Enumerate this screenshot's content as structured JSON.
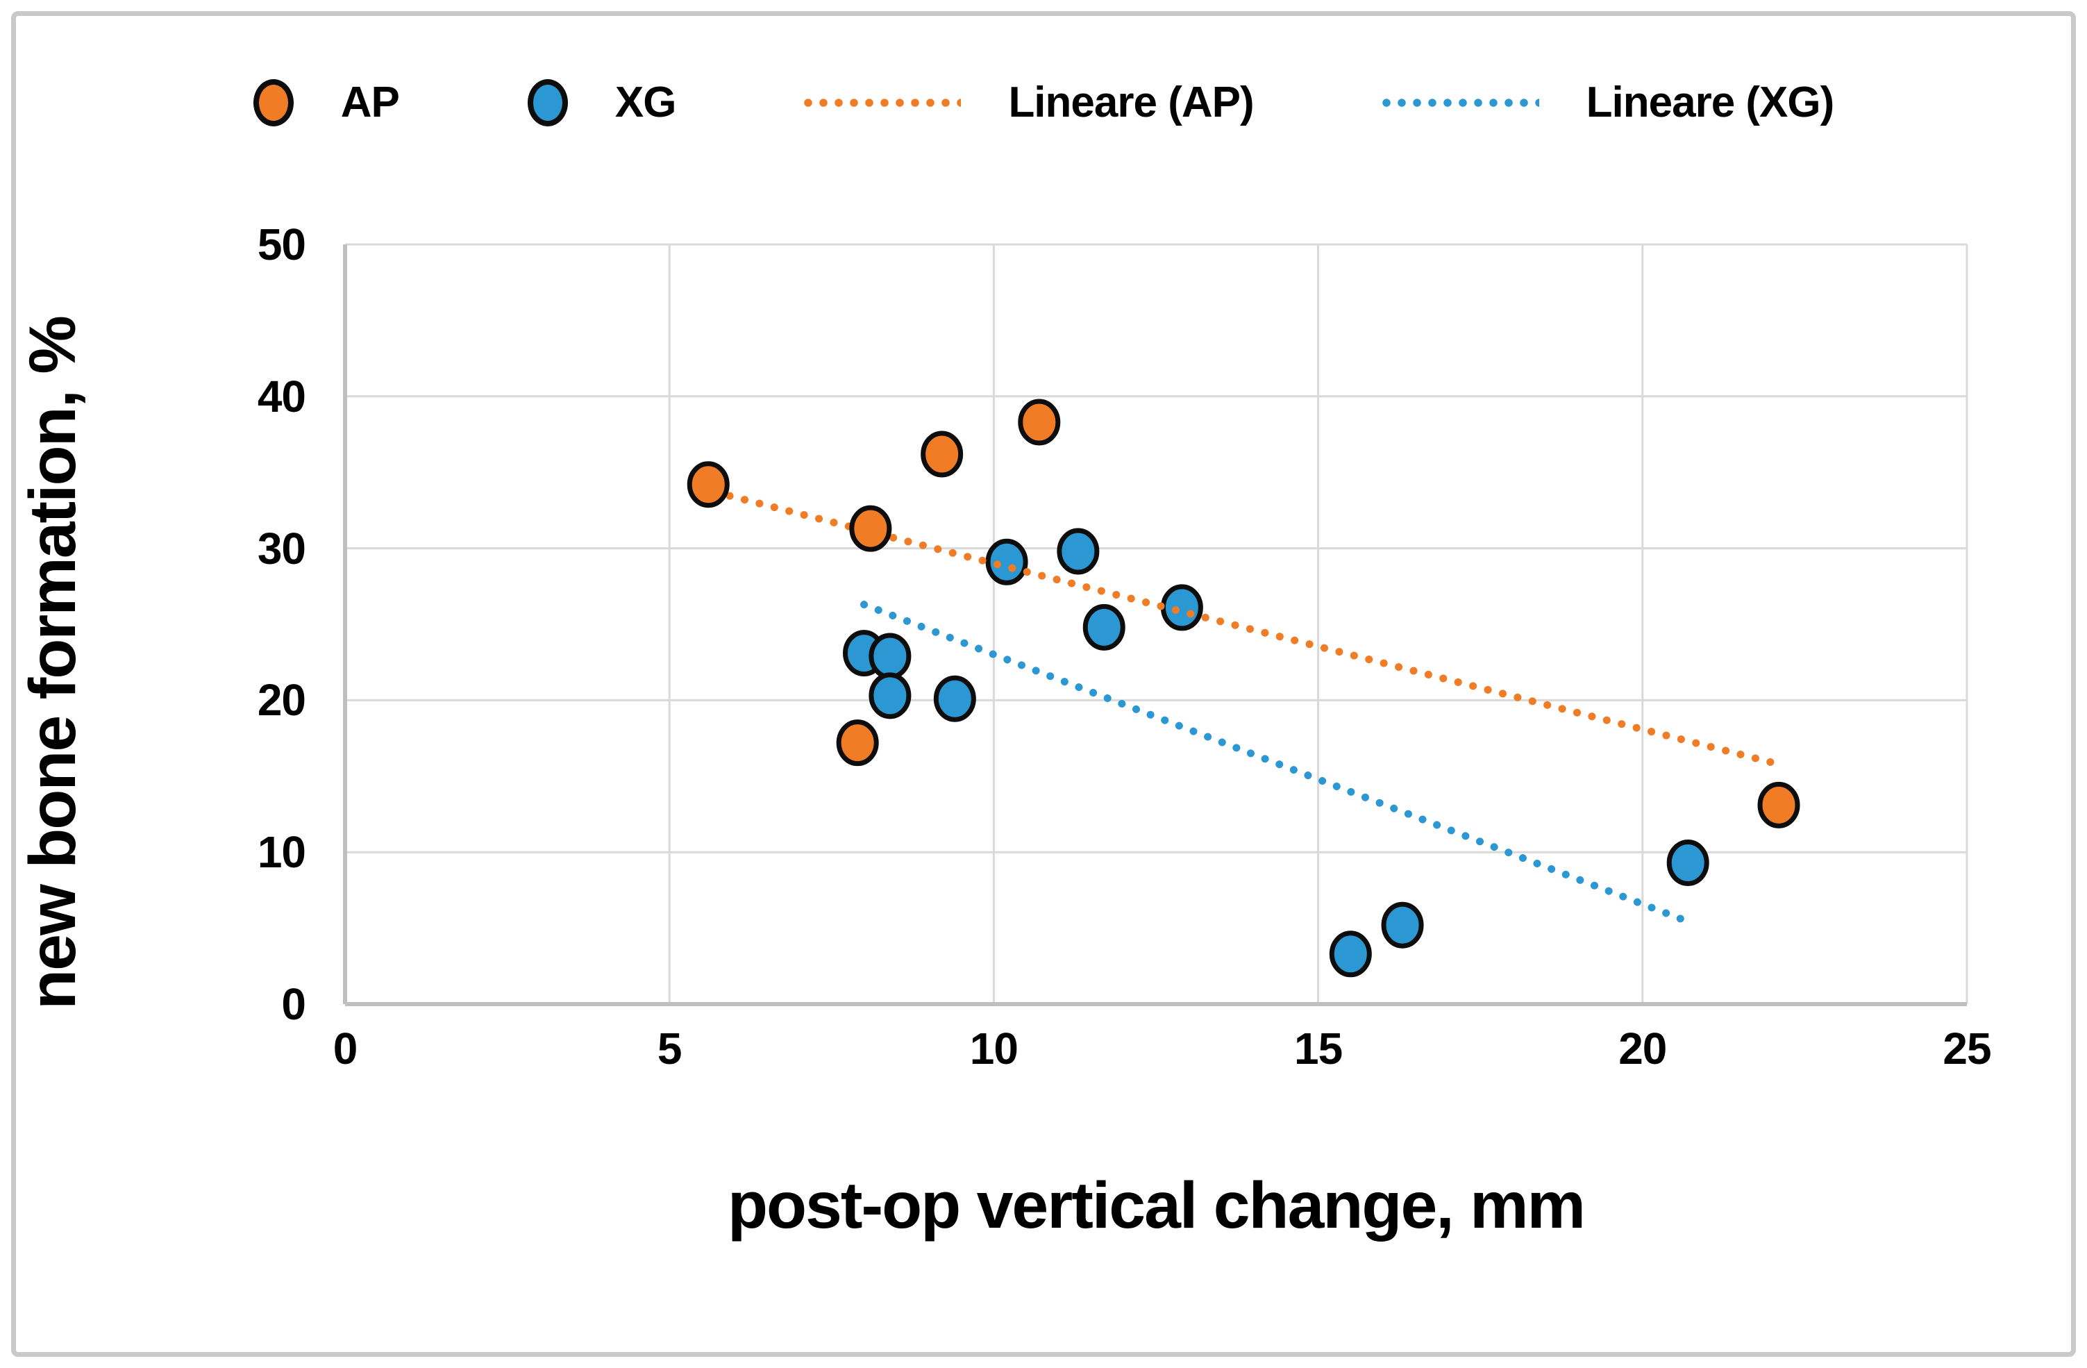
{
  "figure": {
    "background": "#ffffff",
    "border_color": "#c9c9c9"
  },
  "style": {
    "grid_color": "#d9d9d9",
    "axis_line_color": "#bfbfbf",
    "marker_outline_color": "#0d0d0d",
    "text_color": "#000000",
    "ap_color": "#f07d26",
    "xg_color": "#2b97d3"
  },
  "legend": [
    {
      "id": "ap",
      "label": "AP",
      "marker": "circle",
      "color": "#f07d26"
    },
    {
      "id": "xg",
      "label": "XG",
      "marker": "circle",
      "color": "#2b97d3"
    },
    {
      "id": "lin-ap",
      "label": "Lineare (AP)",
      "marker": "dotted-line",
      "color": "#f07d26"
    },
    {
      "id": "lin-xg",
      "label": "Lineare (XG)",
      "marker": "dotted-line",
      "color": "#2b97d3"
    }
  ],
  "chart_data": {
    "type": "scatter",
    "title": "",
    "xlabel": "post-op vertical change, mm",
    "ylabel": "new bone formation, %",
    "xlim": [
      0,
      25
    ],
    "ylim": [
      0,
      50
    ],
    "x_ticks": [
      0,
      5,
      10,
      15,
      20,
      25
    ],
    "y_ticks": [
      0,
      10,
      20,
      30,
      40,
      50
    ],
    "grid": true,
    "legend_position": "top",
    "series": [
      {
        "name": "AP",
        "color": "#f07d26",
        "points": [
          [
            5.6,
            34.2
          ],
          [
            7.9,
            17.2
          ],
          [
            8.1,
            31.3
          ],
          [
            9.2,
            36.2
          ],
          [
            10.7,
            38.3
          ],
          [
            22.1,
            13.1
          ]
        ]
      },
      {
        "name": "XG",
        "color": "#2b97d3",
        "points": [
          [
            8.0,
            23.1
          ],
          [
            8.4,
            22.9
          ],
          [
            8.4,
            20.3
          ],
          [
            9.4,
            20.1
          ],
          [
            10.2,
            29.1
          ],
          [
            11.3,
            29.8
          ],
          [
            11.7,
            24.8
          ],
          [
            12.9,
            26.1
          ],
          [
            15.5,
            3.3
          ],
          [
            16.3,
            5.2
          ],
          [
            20.7,
            9.3
          ]
        ]
      }
    ],
    "trendlines": [
      {
        "name": "Lineare (AP)",
        "series": "AP",
        "color": "#f07d26",
        "from": [
          5.7,
          33.7
        ],
        "to": [
          22.0,
          15.9
        ]
      },
      {
        "name": "Lineare (XG)",
        "series": "XG",
        "color": "#2b97d3",
        "from": [
          8.0,
          26.3
        ],
        "to": [
          20.6,
          5.6
        ]
      }
    ]
  }
}
